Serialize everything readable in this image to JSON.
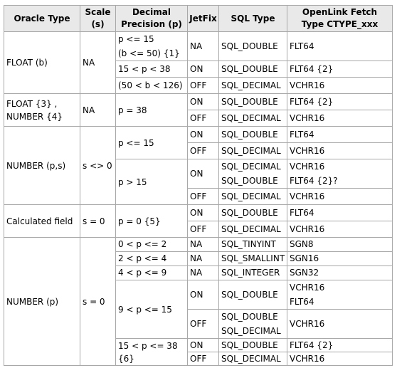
{
  "header": {
    "oracle_type": "Oracle Type",
    "scale_1": "Scale",
    "scale_2": "(s)",
    "decimal_1": "Decimal",
    "decimal_2": "Precision (p)",
    "jetfix": "JetFix",
    "sql_type": "SQL Type",
    "openlink_1": "OpenLink Fetch",
    "openlink_2": "Type CTYPE_xxx"
  },
  "rows": {
    "float_b": {
      "type": "FLOAT (b)",
      "scale": "NA",
      "r1": {
        "precision_1": "p <= 15",
        "precision_2": "(b <= 50) {1}",
        "jetfix": "NA",
        "sql": "SQL_DOUBLE",
        "fetch": "FLT64"
      },
      "r2": {
        "precision": "15 < p < 38",
        "jetfix": "ON",
        "sql": "SQL_DOUBLE",
        "fetch": "FLT64 {2}"
      },
      "r3": {
        "precision": "(50 < b < 126)",
        "jetfix": "OFF",
        "sql": "SQL_DECIMAL",
        "fetch": "VCHR16"
      }
    },
    "float3": {
      "type_1": "FLOAT {3} ,",
      "type_2": "NUMBER {4}",
      "scale": "NA",
      "precision": "p = 38",
      "r1": {
        "jetfix": "ON",
        "sql": "SQL_DOUBLE",
        "fetch": "FLT64 {2}"
      },
      "r2": {
        "jetfix": "OFF",
        "sql": "SQL_DECIMAL",
        "fetch": "VCHR16"
      }
    },
    "number_ps": {
      "type": "NUMBER (p,s)",
      "scale": "s <> 0",
      "precision_a": "p <= 15",
      "precision_b": "p > 15",
      "r1": {
        "jetfix": "ON",
        "sql": "SQL_DOUBLE",
        "fetch": "FLT64"
      },
      "r2": {
        "jetfix": "OFF",
        "sql": "SQL_DECIMAL",
        "fetch": "VCHR16"
      },
      "r3": {
        "jetfix": "ON",
        "sql_1": "SQL_DECIMAL",
        "sql_2": "SQL_DOUBLE",
        "fetch_1": "VCHR16",
        "fetch_2": "FLT64 {2}?"
      },
      "r4": {
        "jetfix": "OFF",
        "sql": "SQL_DECIMAL",
        "fetch": "VCHR16"
      }
    },
    "calculated": {
      "type": "Calculated field",
      "scale": "s = 0",
      "precision": "p = 0 {5}",
      "r1": {
        "jetfix": "ON",
        "sql": "SQL_DOUBLE",
        "fetch": "FLT64"
      },
      "r2": {
        "jetfix": "OFF",
        "sql": "SQL_DECIMAL",
        "fetch": "VCHR16"
      }
    },
    "number_p": {
      "type": "NUMBER (p)",
      "scale": "s = 0",
      "r1": {
        "precision": "0 < p <= 2",
        "jetfix": "NA",
        "sql": "SQL_TINYINT",
        "fetch": "SGN8"
      },
      "r2": {
        "precision": "2 < p <= 4",
        "jetfix": "NA",
        "sql": "SQL_SMALLINT",
        "fetch": "SGN16"
      },
      "r3": {
        "precision": "4 < p <= 9",
        "jetfix": "NA",
        "sql": "SQL_INTEGER",
        "fetch": "SGN32"
      },
      "precision_mid": "9 < p <= 15",
      "r4": {
        "jetfix": "ON",
        "sql": "SQL_DOUBLE",
        "fetch_1": "VCHR16",
        "fetch_2": "FLT64"
      },
      "r5": {
        "jetfix": "OFF",
        "sql_1": "SQL_DOUBLE",
        "sql_2": "SQL_DECIMAL",
        "fetch": "VCHR16"
      },
      "precision_last_1": "15 < p <= 38",
      "precision_last_2": "{6}",
      "r6": {
        "jetfix": "ON",
        "sql": "SQL_DOUBLE",
        "fetch": "FLT64 {2}"
      },
      "r7": {
        "jetfix": "OFF",
        "sql": "SQL_DECIMAL",
        "fetch": "VCHR16"
      }
    }
  }
}
